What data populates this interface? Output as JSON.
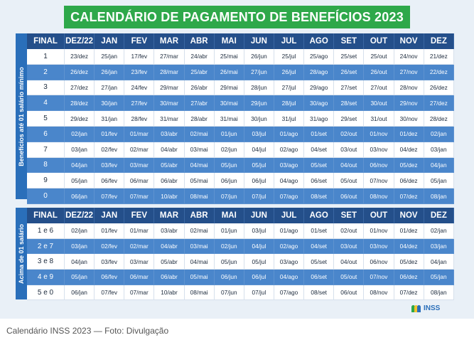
{
  "title": "CALENDÁRIO DE PAGAMENTO DE BENEFÍCIOS 2023",
  "headers": [
    "FINAL",
    "DEZ/22",
    "JAN",
    "FEV",
    "MAR",
    "ABR",
    "MAI",
    "JUN",
    "JUL",
    "AGO",
    "SET",
    "OUT",
    "NOV",
    "DEZ"
  ],
  "section1": {
    "label": "Benefícios até 01 salário mínimo",
    "rows": [
      [
        "1",
        "23/dez",
        "25/jan",
        "17/fev",
        "27/mar",
        "24/abr",
        "25/mai",
        "26/jun",
        "25/jul",
        "25/ago",
        "25/set",
        "25/out",
        "24/nov",
        "21/dez"
      ],
      [
        "2",
        "26/dez",
        "26/jan",
        "23/fev",
        "28/mar",
        "25/abr",
        "26/mai",
        "27/jun",
        "26/jul",
        "28/ago",
        "26/set",
        "26/out",
        "27/nov",
        "22/dez"
      ],
      [
        "3",
        "27/dez",
        "27/jan",
        "24/fev",
        "29/mar",
        "26/abr",
        "29/mai",
        "28/jun",
        "27/jul",
        "29/ago",
        "27/set",
        "27/out",
        "28/nov",
        "26/dez"
      ],
      [
        "4",
        "28/dez",
        "30/jan",
        "27/fev",
        "30/mar",
        "27/abr",
        "30/mai",
        "29/jun",
        "28/jul",
        "30/ago",
        "28/set",
        "30/out",
        "29/nov",
        "27/dez"
      ],
      [
        "5",
        "29/dez",
        "31/jan",
        "28/fev",
        "31/mar",
        "28/abr",
        "31/mai",
        "30/jun",
        "31/jul",
        "31/ago",
        "29/set",
        "31/out",
        "30/nov",
        "28/dez"
      ],
      [
        "6",
        "02/jan",
        "01/fev",
        "01/mar",
        "03/abr",
        "02/mai",
        "01/jun",
        "03/jul",
        "01/ago",
        "01/set",
        "02/out",
        "01/nov",
        "01/dez",
        "02/jan"
      ],
      [
        "7",
        "03/jan",
        "02/fev",
        "02/mar",
        "04/abr",
        "03/mai",
        "02/jun",
        "04/jul",
        "02/ago",
        "04/set",
        "03/out",
        "03/nov",
        "04/dez",
        "03/jan"
      ],
      [
        "8",
        "04/jan",
        "03/fev",
        "03/mar",
        "05/abr",
        "04/mai",
        "05/jun",
        "05/jul",
        "03/ago",
        "05/set",
        "04/out",
        "06/nov",
        "05/dez",
        "04/jan"
      ],
      [
        "9",
        "05/jan",
        "06/fev",
        "06/mar",
        "06/abr",
        "05/mai",
        "06/jun",
        "06/jul",
        "04/ago",
        "06/set",
        "05/out",
        "07/nov",
        "06/dez",
        "05/jan"
      ],
      [
        "0",
        "06/jan",
        "07/fev",
        "07/mar",
        "10/abr",
        "08/mai",
        "07/jun",
        "07/jul",
        "07/ago",
        "08/set",
        "06/out",
        "08/nov",
        "07/dez",
        "08/jan"
      ]
    ]
  },
  "section2": {
    "label": "Acima de 01 salário",
    "rows": [
      [
        "1 e 6",
        "02/jan",
        "01/fev",
        "01/mar",
        "03/abr",
        "02/mai",
        "01/jun",
        "03/jul",
        "01/ago",
        "01/set",
        "02/out",
        "01/nov",
        "01/dez",
        "02/jan"
      ],
      [
        "2 e 7",
        "03/jan",
        "02/fev",
        "02/mar",
        "04/abr",
        "03/mai",
        "02/jun",
        "04/jul",
        "02/ago",
        "04/set",
        "03/out",
        "03/nov",
        "04/dez",
        "03/jan"
      ],
      [
        "3 e 8",
        "04/jan",
        "03/fev",
        "03/mar",
        "05/abr",
        "04/mai",
        "05/jun",
        "05/jul",
        "03/ago",
        "05/set",
        "04/out",
        "06/nov",
        "05/dez",
        "04/jan"
      ],
      [
        "4 e 9",
        "05/jan",
        "06/fev",
        "06/mar",
        "06/abr",
        "05/mai",
        "06/jun",
        "06/jul",
        "04/ago",
        "06/set",
        "05/out",
        "07/nov",
        "06/dez",
        "05/jan"
      ],
      [
        "5 e 0",
        "06/jan",
        "07/fev",
        "07/mar",
        "10/abr",
        "08/mai",
        "07/jun",
        "07/jul",
        "07/ago",
        "08/set",
        "06/out",
        "08/nov",
        "07/dez",
        "08/jan"
      ]
    ]
  },
  "logo_text": "INSS",
  "caption": "Calendário INSS 2023 — Foto: Divulgação",
  "colors": {
    "banner_green": "#2ea84a",
    "header_navy": "#244f8a",
    "row_blue": "#4a86cb",
    "side_blue": "#2a6fba",
    "logo_green": "#2ea84a",
    "logo_yellow": "#f2c230",
    "logo_blue": "#2a6fba"
  }
}
